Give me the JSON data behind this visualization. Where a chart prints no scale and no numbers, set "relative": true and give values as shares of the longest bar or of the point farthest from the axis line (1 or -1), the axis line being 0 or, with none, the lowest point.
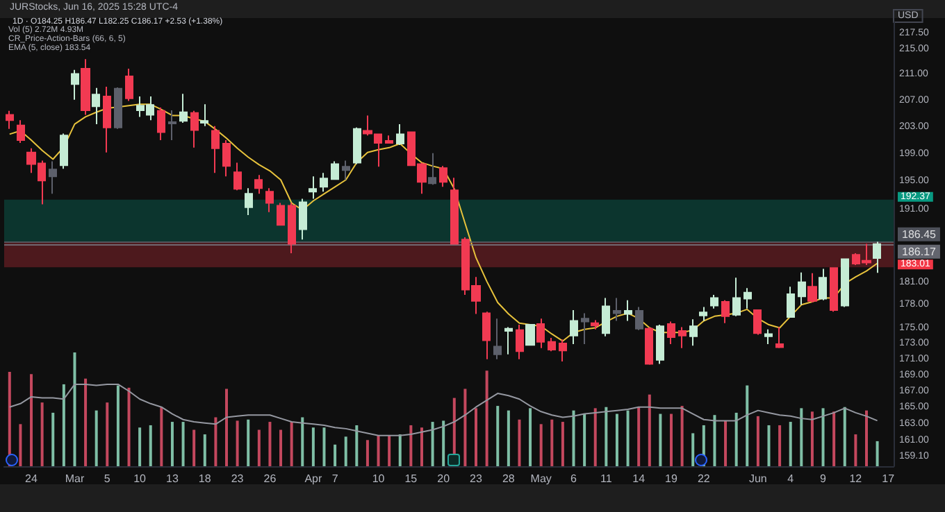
{
  "chart_data": [
    {
      "type": "candlestick",
      "title": "JURStocks, Jun 16, 2025 15:28 UTC-4",
      "subtitle": "1D · O184.25 H186.47 L182.25 C186.17 +2.53 (+1.38%)",
      "ylabel": "USD",
      "annotations": [
        "Vol (5) 2.72M 4.93M",
        "CR_Price-Action-Bars (66, 6, 5)",
        "EMA (5, close) 183.54"
      ],
      "categories": [
        null,
        null,
        "24",
        null,
        null,
        null,
        "Mar",
        null,
        null,
        "5",
        null,
        null,
        "10",
        null,
        null,
        "13",
        null,
        null,
        "18",
        null,
        null,
        "23",
        null,
        null,
        "26",
        null,
        null,
        null,
        "Apr",
        null,
        "7",
        null,
        null,
        null,
        "10",
        null,
        null,
        "15",
        null,
        null,
        "20",
        null,
        null,
        "23",
        null,
        null,
        "28",
        null,
        null,
        "May",
        null,
        null,
        "6",
        null,
        null,
        "11",
        null,
        null,
        "14",
        null,
        null,
        "19",
        null,
        null,
        "22",
        null,
        null,
        null,
        null,
        "Jun",
        null,
        null,
        "4",
        null,
        null,
        "9",
        null,
        null,
        "12",
        null,
        null,
        "17"
      ],
      "log": true,
      "ylim": [
        158,
        219.3
      ],
      "yticks": [
        {
          "value": 217.5,
          "label": "217.50"
        },
        {
          "value": 215,
          "label": "215.00"
        },
        {
          "value": 211,
          "label": "211.00"
        },
        {
          "value": 207,
          "label": "207.00"
        },
        {
          "value": 203,
          "label": "203.00"
        },
        {
          "value": 199,
          "label": "199.00"
        },
        {
          "value": 195,
          "label": "195.00"
        },
        {
          "value": 191,
          "label": "191.00"
        },
        {
          "value": 181,
          "label": "181.00"
        },
        {
          "value": 178,
          "label": "178.00"
        },
        {
          "value": 175,
          "label": "175.00"
        },
        {
          "value": 173,
          "label": "173.00"
        },
        {
          "value": 171,
          "label": "171.00"
        },
        {
          "value": 169,
          "label": "169.00"
        },
        {
          "value": 167,
          "label": "167.00"
        },
        {
          "value": 165,
          "label": "165.00"
        },
        {
          "value": 163,
          "label": "163.00"
        },
        {
          "value": 161,
          "label": "161.00"
        },
        {
          "value": 159.1,
          "label": "159.10"
        }
      ],
      "ref_lines": [
        {
          "axis": "y",
          "value": 186.45,
          "label": "186.45",
          "color": "#5d606b"
        },
        {
          "axis": "y",
          "value": 186.17,
          "label": "186.17",
          "color": "#787b86"
        }
      ],
      "bands": [
        {
          "axis": "y",
          "from": 192.37,
          "to": 186.45,
          "label": "192.37",
          "color": "#089981"
        },
        {
          "axis": "y",
          "from": 183.01,
          "to": 186.45,
          "label": "183.01",
          "color": "#f23645"
        }
      ],
      "series": [
        {
          "type": "candlestick",
          "ohlc": [
            [
              204.8,
              205.4,
              202.7,
              204.0
            ],
            [
              203.2,
              204.0,
              200.6,
              201.0
            ],
            [
              199.2,
              199.8,
              196.2,
              197.5
            ],
            [
              197.6,
              198.0,
              191.7,
              195.1
            ],
            [
              195.7,
              197.9,
              193.2,
              196.7
            ],
            [
              197.3,
              202.0,
              196.8,
              201.7
            ],
            [
              209.5,
              211.7,
              207.1,
              211.1
            ],
            [
              211.9,
              213.4,
              204.8,
              205.5
            ],
            [
              206.1,
              208.9,
              203.4,
              207.9
            ],
            [
              207.6,
              209.1,
              199.2,
              202.9
            ],
            [
              202.9,
              209.0,
              202.7,
              208.8
            ],
            [
              210.7,
              211.9,
              206.9,
              207.3
            ],
            [
              205.5,
              207.6,
              204.5,
              206.2
            ],
            [
              204.8,
              207.6,
              204.0,
              206.3
            ],
            [
              205.4,
              205.9,
              201.0,
              202.2
            ],
            [
              203.5,
              205.5,
              201.0,
              203.7
            ],
            [
              203.9,
              208.0,
              203.6,
              205.2
            ],
            [
              205.1,
              205.4,
              199.9,
              202.5
            ],
            [
              203.6,
              206.4,
              203.1,
              203.9
            ],
            [
              202.4,
              203.1,
              196.2,
              199.8
            ],
            [
              200.5,
              201.0,
              195.7,
              197.2
            ],
            [
              196.3,
              197.7,
              193.7,
              193.9
            ],
            [
              191.3,
              194.0,
              190.2,
              193.2
            ],
            [
              195.2,
              195.9,
              193.2,
              194.0
            ],
            [
              193.5,
              194.0,
              190.6,
              191.9
            ],
            [
              191.5,
              191.9,
              188.7,
              188.8
            ],
            [
              191.5,
              191.9,
              184.9,
              186.2
            ],
            [
              188.2,
              192.5,
              186.8,
              192.0
            ],
            [
              193.5,
              195.7,
              192.5,
              193.9
            ],
            [
              194.2,
              196.2,
              193.5,
              195.4
            ],
            [
              195.3,
              197.9,
              195.2,
              197.5
            ],
            [
              196.6,
              198.0,
              195.2,
              197.1
            ],
            [
              197.7,
              202.9,
              197.5,
              202.7
            ],
            [
              202.4,
              204.7,
              201.7,
              202.0
            ],
            [
              201.9,
              202.0,
              197.1,
              200.6
            ],
            [
              200.9,
              201.7,
              200.5,
              200.6
            ],
            [
              200.5,
              203.4,
              200.3,
              201.9
            ],
            [
              202.2,
              202.2,
              197.2,
              197.3
            ],
            [
              197.5,
              197.7,
              193.2,
              194.9
            ],
            [
              194.7,
              199.1,
              194.5,
              195.5
            ],
            [
              196.9,
              197.2,
              194.2,
              194.9
            ],
            [
              193.7,
              195.5,
              186.1,
              186.2
            ],
            [
              186.8,
              187.1,
              179.3,
              180.0
            ],
            [
              180.5,
              181.7,
              176.8,
              178.5
            ],
            [
              176.9,
              177.1,
              171.0,
              173.4
            ],
            [
              171.6,
              176.2,
              171.0,
              172.6
            ],
            [
              174.6,
              175.1,
              171.6,
              174.9
            ],
            [
              174.7,
              175.4,
              171.0,
              172.0
            ],
            [
              172.8,
              175.5,
              172.7,
              175.4
            ],
            [
              175.5,
              176.2,
              172.4,
              173.2
            ],
            [
              173.2,
              173.7,
              172.0,
              172.2
            ],
            [
              173.0,
              173.5,
              170.7,
              172.1
            ],
            [
              174.0,
              177.3,
              172.9,
              175.9
            ],
            [
              175.8,
              176.9,
              172.9,
              176.2
            ],
            [
              175.6,
              176.0,
              174.8,
              175.3
            ],
            [
              174.3,
              178.9,
              173.9,
              177.8
            ],
            [
              176.9,
              178.9,
              175.9,
              177.2
            ],
            [
              176.8,
              178.6,
              175.9,
              177.2
            ],
            [
              177.2,
              177.7,
              174.7,
              174.9
            ],
            [
              174.9,
              175.1,
              170.3,
              170.4
            ],
            [
              170.9,
              175.4,
              170.4,
              175.2
            ],
            [
              175.5,
              175.8,
              172.9,
              173.8
            ],
            [
              174.6,
              175.1,
              172.4,
              174.0
            ],
            [
              173.9,
              176.1,
              172.7,
              175.2
            ],
            [
              176.6,
              177.7,
              175.9,
              177.0
            ],
            [
              177.9,
              179.3,
              177.5,
              178.9
            ],
            [
              178.4,
              178.6,
              175.6,
              176.5
            ],
            [
              176.7,
              181.6,
              176.5,
              178.9
            ],
            [
              178.8,
              180.2,
              177.5,
              179.6
            ],
            [
              177.3,
              177.3,
              174.1,
              174.3
            ],
            [
              173.9,
              174.8,
              172.9,
              174.2
            ],
            [
              172.9,
              175.1,
              172.4,
              172.5
            ],
            [
              176.4,
              180.4,
              176.4,
              179.4
            ],
            [
              179.1,
              182.3,
              178.0,
              181.0
            ],
            [
              180.4,
              182.2,
              178.3,
              178.5
            ],
            [
              178.8,
              182.8,
              178.6,
              181.6
            ],
            [
              182.9,
              182.9,
              177.1,
              177.3
            ],
            [
              177.9,
              184.2,
              177.7,
              184.1
            ],
            [
              184.7,
              184.9,
              183.3,
              183.5
            ],
            [
              183.9,
              186.2,
              183.3,
              183.64
            ],
            [
              184.25,
              186.47,
              182.25,
              186.17
            ],
            null
          ],
          "colors": [
            "#f23a52",
            "#f23a52",
            "#f23a52",
            "#f23a52",
            "#5d606b",
            "#c5ecd5",
            "#c5ecd5",
            "#f23a52",
            "#c5ecd5",
            "#f23a52",
            "#5d606b",
            "#f23a52",
            "#c5ecd5",
            "#c5ecd5",
            "#f23a52",
            "#5d606b",
            "#c5ecd5",
            "#f23a52",
            "#c5ecd5",
            "#f23a52",
            "#f23a52",
            "#f23a52",
            "#c5ecd5",
            "#f23a52",
            "#f23a52",
            "#f23a52",
            "#f23a52",
            "#c5ecd5",
            "#c5ecd5",
            "#c5ecd5",
            "#c5ecd5",
            "#5d606b",
            "#c5ecd5",
            "#f23a52",
            "#f23a52",
            "#f23a52",
            "#c5ecd5",
            "#f23a52",
            "#f23a52",
            "#5d606b",
            "#f23a52",
            "#f23a52",
            "#f23a52",
            "#f23a52",
            "#f23a52",
            "#5d606b",
            "#c5ecd5",
            "#f23a52",
            "#c5ecd5",
            "#f23a52",
            "#f23a52",
            "#f23a52",
            "#c5ecd5",
            "#5d606b",
            "#f23a52",
            "#c5ecd5",
            "#5d606b",
            "#c5ecd5",
            "#5d606b",
            "#f23a52",
            "#c5ecd5",
            "#f23a52",
            "#f23a52",
            "#c5ecd5",
            "#c5ecd5",
            "#c5ecd5",
            "#f23a52",
            "#c5ecd5",
            "#c5ecd5",
            "#f23a52",
            "#c5ecd5",
            "#f23a52",
            "#c5ecd5",
            "#c5ecd5",
            "#f23a52",
            "#c5ecd5",
            "#f23a52",
            "#c5ecd5",
            "#f23a52",
            "#f23a52",
            "#c5ecd5",
            null
          ]
        },
        {
          "type": "line",
          "color": "#e8c33c",
          "values": [
            201.9,
            202.4,
            201.0,
            199.5,
            198.2,
            200.0,
            203.4,
            204.5,
            205.2,
            205.8,
            206.0,
            206.2,
            206.4,
            206.4,
            205.6,
            204.7,
            204.7,
            204.2,
            203.8,
            202.6,
            201.3,
            199.8,
            198.5,
            197.4,
            196.5,
            195.2,
            191.9,
            190.9,
            192.2,
            193.2,
            194.2,
            195.2,
            197.7,
            199.2,
            199.6,
            199.9,
            200.5,
            199.0,
            197.7,
            197.2,
            196.8,
            193.9,
            189.0,
            184.3,
            181.1,
            178.3,
            176.8,
            175.6,
            175.4,
            175.2,
            174.2,
            173.3,
            174.4,
            174.8,
            175.0,
            175.8,
            176.5,
            176.9,
            176.2,
            175.0,
            174.4,
            174.4,
            174.4,
            174.7,
            175.9,
            176.5,
            176.7,
            176.9,
            177.4,
            176.2,
            175.4,
            175.0,
            176.5,
            178.0,
            178.4,
            178.9,
            178.9,
            180.8,
            181.7,
            182.5,
            183.54,
            null
          ]
        }
      ]
    },
    {
      "type": "bar",
      "relative": true,
      "categories": [
        null,
        null,
        null,
        null,
        null,
        null,
        null,
        null,
        null,
        null,
        null,
        null,
        null,
        null,
        null,
        null,
        null,
        null,
        null,
        null,
        null,
        null,
        null,
        null,
        null,
        null,
        null,
        null,
        null,
        null,
        null,
        null,
        null,
        null,
        null,
        null,
        null,
        null,
        null,
        null,
        null,
        null,
        null,
        null,
        null,
        null,
        null,
        null,
        null,
        null,
        null,
        null,
        null,
        null,
        null,
        null,
        null,
        null,
        null,
        null,
        null,
        null,
        null,
        null,
        null,
        null,
        null,
        null,
        null,
        null,
        null,
        null,
        null,
        null,
        null,
        null,
        null,
        null,
        null,
        null,
        null,
        null
      ],
      "series": [
        {
          "values": [
            0.83,
            0.37,
            0.81,
            0.56,
            0.47,
            0.72,
            1,
            0.77,
            0.49,
            0.56,
            0.71,
            0.69,
            0.34,
            0.36,
            0.52,
            0.39,
            0.39,
            0.32,
            0.28,
            0.43,
            0.68,
            0.4,
            0.41,
            0.32,
            0.39,
            0.32,
            0.39,
            0.43,
            0.34,
            0.34,
            0.19,
            0.26,
            0.36,
            0.23,
            0.27,
            0.27,
            0.28,
            0.36,
            0.34,
            0.39,
            0.4,
            0.6,
            0.68,
            0.51,
            0.84,
            0.53,
            0.49,
            0.41,
            0.51,
            0.37,
            0.41,
            0.39,
            0.49,
            0.46,
            0.51,
            0.52,
            0.46,
            0.49,
            0.52,
            0.63,
            0.46,
            0.46,
            0.53,
            0.29,
            0.36,
            0.45,
            0.4,
            0.47,
            0.71,
            0.44,
            0.36,
            0.36,
            0.39,
            0.51,
            0.48,
            0.51,
            0.48,
            0.52,
            0.28,
            0.49,
            0.22,
            null
          ],
          "colors": [
            "#c4485e",
            "#c4485e",
            "#c4485e",
            "#c4485e",
            "#7fbfa6",
            "#7fbfa6",
            "#7fbfa6",
            "#c4485e",
            "#7fbfa6",
            "#c4485e",
            "#7fbfa6",
            "#c4485e",
            "#7fbfa6",
            "#7fbfa6",
            "#c4485e",
            "#7fbfa6",
            "#7fbfa6",
            "#c4485e",
            "#7fbfa6",
            "#c4485e",
            "#c4485e",
            "#c4485e",
            "#7fbfa6",
            "#c4485e",
            "#c4485e",
            "#c4485e",
            "#c4485e",
            "#7fbfa6",
            "#7fbfa6",
            "#7fbfa6",
            "#7fbfa6",
            "#7fbfa6",
            "#7fbfa6",
            "#c4485e",
            "#c4485e",
            "#c4485e",
            "#7fbfa6",
            "#c4485e",
            "#c4485e",
            "#7fbfa6",
            "#7fbfa6",
            "#c4485e",
            "#c4485e",
            "#c4485e",
            "#c4485e",
            "#7fbfa6",
            "#7fbfa6",
            "#c4485e",
            "#7fbfa6",
            "#c4485e",
            "#c4485e",
            "#c4485e",
            "#7fbfa6",
            "#7fbfa6",
            "#c4485e",
            "#7fbfa6",
            "#7fbfa6",
            "#7fbfa6",
            "#c4485e",
            "#c4485e",
            "#7fbfa6",
            "#c4485e",
            "#c4485e",
            "#7fbfa6",
            "#7fbfa6",
            "#7fbfa6",
            "#c4485e",
            "#7fbfa6",
            "#7fbfa6",
            "#c4485e",
            "#7fbfa6",
            "#c4485e",
            "#7fbfa6",
            "#7fbfa6",
            "#c4485e",
            "#7fbfa6",
            "#c4485e",
            "#7fbfa6",
            "#c4485e",
            "#c4485e",
            "#7fbfa6",
            null
          ]
        },
        {
          "type": "line",
          "color": "#9598a1",
          "values": [
            0.52,
            0.55,
            0.61,
            0.6,
            0.6,
            0.59,
            0.72,
            0.72,
            0.71,
            0.72,
            0.72,
            0.66,
            0.59,
            0.55,
            0.52,
            0.46,
            0.41,
            0.39,
            0.38,
            0.37,
            0.43,
            0.44,
            0.45,
            0.45,
            0.45,
            0.42,
            0.39,
            0.38,
            0.37,
            0.36,
            0.34,
            0.33,
            0.31,
            0.29,
            0.27,
            0.27,
            0.27,
            0.28,
            0.3,
            0.32,
            0.35,
            0.39,
            0.45,
            0.52,
            0.58,
            0.64,
            0.62,
            0.59,
            0.53,
            0.48,
            0.45,
            0.43,
            0.44,
            0.46,
            0.47,
            0.48,
            0.49,
            0.5,
            0.52,
            0.52,
            0.51,
            0.51,
            0.51,
            0.46,
            0.41,
            0.4,
            0.4,
            0.4,
            0.45,
            0.49,
            0.47,
            0.45,
            0.44,
            0.42,
            0.41,
            0.44,
            0.47,
            0.51,
            0.47,
            0.44,
            0.4,
            null
          ]
        }
      ]
    }
  ]
}
